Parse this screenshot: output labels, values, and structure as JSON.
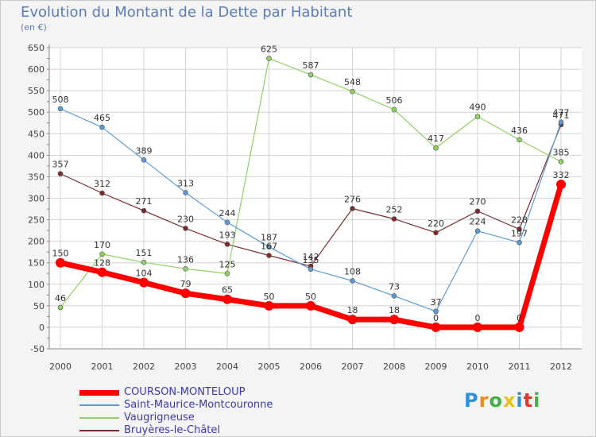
{
  "chart_data": {
    "type": "line",
    "title": "Evolution du Montant de la Dette par Habitant",
    "subtitle": "(en €)",
    "x": [
      "2000",
      "2001",
      "2002",
      "2003",
      "2004",
      "2005",
      "2006",
      "2007",
      "2008",
      "2009",
      "2010",
      "2011",
      "2012"
    ],
    "ylim": [
      -50,
      650
    ],
    "yticks": [
      -50,
      0,
      50,
      100,
      150,
      200,
      250,
      300,
      350,
      400,
      450,
      500,
      550,
      600,
      650
    ],
    "grid": true,
    "legend_position": "bottom-left",
    "series": [
      {
        "name": "COURSON-MONTELOUP",
        "color": "#ff0000",
        "width": 7,
        "values": [
          150,
          128,
          104,
          79,
          65,
          50,
          50,
          18,
          18,
          0,
          0,
          0,
          332
        ],
        "labels": [
          "150",
          "128",
          "104",
          "79",
          "65",
          "50",
          "50",
          "18",
          "18",
          "0",
          "0",
          "0",
          "332"
        ]
      },
      {
        "name": "Saint-Maurice-Montcouronne",
        "color": "#5a9bd5",
        "width": 1.2,
        "values": [
          508,
          465,
          389,
          313,
          244,
          187,
          135,
          108,
          73,
          37,
          224,
          197,
          477
        ],
        "labels": [
          "508",
          "465",
          "389",
          "313",
          "244",
          "187",
          "135",
          "108",
          "73",
          "37",
          "224",
          "197",
          "477"
        ]
      },
      {
        "name": "Vaugrigneuse",
        "color": "#8fd163",
        "width": 1.2,
        "values": [
          46,
          170,
          151,
          136,
          125,
          625,
          587,
          548,
          506,
          417,
          490,
          436,
          385
        ],
        "labels": [
          "46",
          "170",
          "151",
          "136",
          "125",
          "625",
          "587",
          "548",
          "506",
          "417",
          "490",
          "436",
          "385"
        ]
      },
      {
        "name": "Bruyères-le-Châtel",
        "color": "#7a2b2b",
        "width": 1.2,
        "values": [
          357,
          312,
          271,
          230,
          193,
          167,
          142,
          276,
          252,
          220,
          270,
          228,
          471
        ],
        "labels": [
          "357",
          "312",
          "271",
          "230",
          "193",
          "167",
          "142",
          "276",
          "252",
          "220",
          "270",
          "228",
          "471"
        ]
      }
    ]
  },
  "logo": {
    "text": "Proxiti"
  }
}
